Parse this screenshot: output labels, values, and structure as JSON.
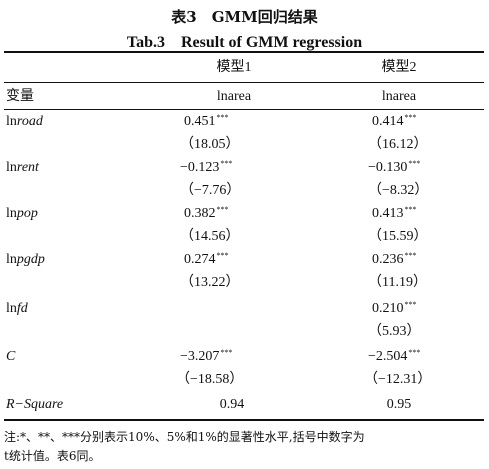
{
  "table": {
    "title_cn": "表3　GMM回归结果",
    "title_en": "Tab.3　Result of GMM regression",
    "header": {
      "model1": "模型1",
      "model2": "模型2"
    },
    "dep_row": {
      "label": "变量",
      "model1": "lnarea",
      "model2": "lnarea"
    },
    "rows": [
      {
        "prefix": "ln",
        "name": "road",
        "m1": "0.451",
        "m1_stars": "***",
        "m1_se": "（18.05）",
        "m2": "0.414",
        "m2_stars": "***",
        "m2_se": "（16.12）"
      },
      {
        "prefix": "ln",
        "name": "rent",
        "m1": "−0.123",
        "m1_stars": "***",
        "m1_se": "（−7.76）",
        "m2": "−0.130",
        "m2_stars": "***",
        "m2_se": "（−8.32）"
      },
      {
        "prefix": "ln",
        "name": "pop",
        "m1": "0.382",
        "m1_stars": "***",
        "m1_se": "（14.56）",
        "m2": "0.413",
        "m2_stars": "***",
        "m2_se": "（15.59）"
      },
      {
        "prefix": "ln",
        "name": "pgdp",
        "m1": "0.274",
        "m1_stars": "***",
        "m1_se": "（13.22）",
        "m2": "0.236",
        "m2_stars": "***",
        "m2_se": "（11.19）"
      },
      {
        "prefix": "ln",
        "name": "fd",
        "m1": "",
        "m1_stars": "",
        "m1_se": "",
        "m2": "0.210",
        "m2_stars": "***",
        "m2_se": "（5.93）"
      },
      {
        "prefix": "",
        "name": "C",
        "m1": "−3.207",
        "m1_stars": "***",
        "m1_se": "（−18.58）",
        "m2": "−2.504",
        "m2_stars": "***",
        "m2_se": "（−12.31）"
      }
    ],
    "rsq": {
      "label": "R−Square",
      "model1": "0.94",
      "model2": "0.95"
    },
    "note_line1": "注:*、**、***分别表示10%、5%和1%的显著性水平,括号中数字为",
    "note_line2": "t统计值。表6同。"
  }
}
